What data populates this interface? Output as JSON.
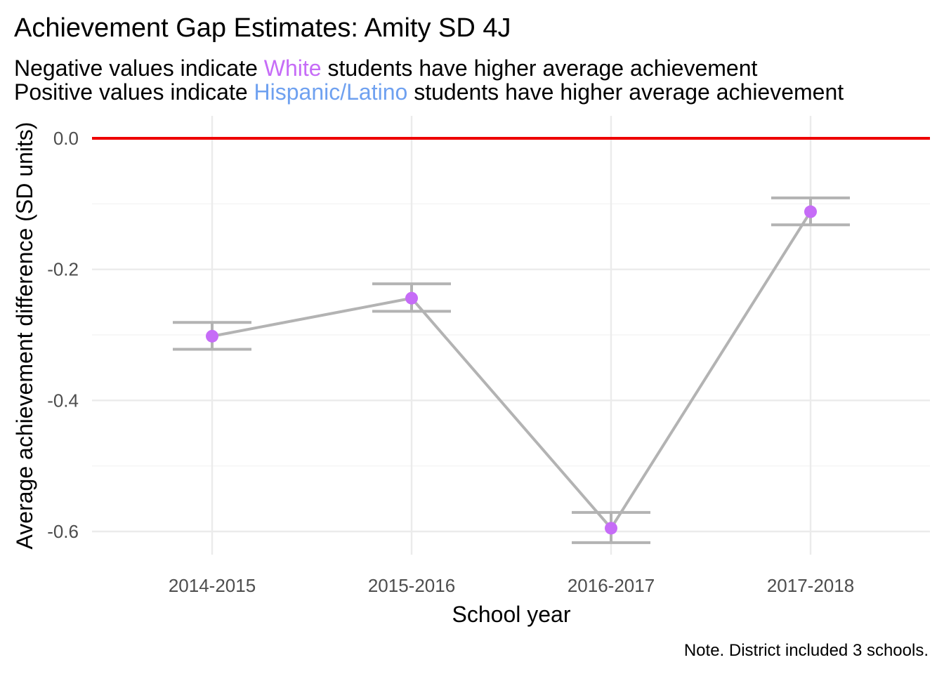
{
  "chart_data": {
    "type": "line",
    "title": "Achievement Gap Estimates: Amity SD 4J",
    "subtitle": {
      "line1": {
        "prefix": "Negative values indicate ",
        "highlight": "White",
        "suffix": " students have higher average achievement"
      },
      "line2": {
        "prefix": "Positive values indicate ",
        "highlight": "Hispanic/Latino",
        "suffix": " students have higher average achievement"
      }
    },
    "xlabel": "School year",
    "ylabel": "Average achievement difference (SD units)",
    "caption": "Note. District included 3 schools.",
    "categories": [
      "2014-2015",
      "2015-2016",
      "2016-2017",
      "2017-2018"
    ],
    "values": [
      -0.302,
      -0.244,
      -0.595,
      -0.112
    ],
    "error_low": [
      -0.322,
      -0.264,
      -0.617,
      -0.132
    ],
    "error_high": [
      -0.281,
      -0.222,
      -0.571,
      -0.091
    ],
    "yticks": [
      0.0,
      -0.2,
      -0.4,
      -0.6
    ],
    "ytick_labels": [
      "0.0",
      "-0.2",
      "-0.4",
      "-0.6"
    ],
    "ylim": [
      -0.65,
      0.02
    ],
    "reference_line": 0.0,
    "grid": true,
    "legend": "none",
    "colors": {
      "point": "#c66cf7",
      "line": "#b3b3b3",
      "errorbar": "#b3b3b3",
      "reference": "#ee0000",
      "white_highlight": "#c66cf7",
      "hispanic_highlight": "#6fa1f0",
      "grid": "#ebebeb"
    }
  }
}
